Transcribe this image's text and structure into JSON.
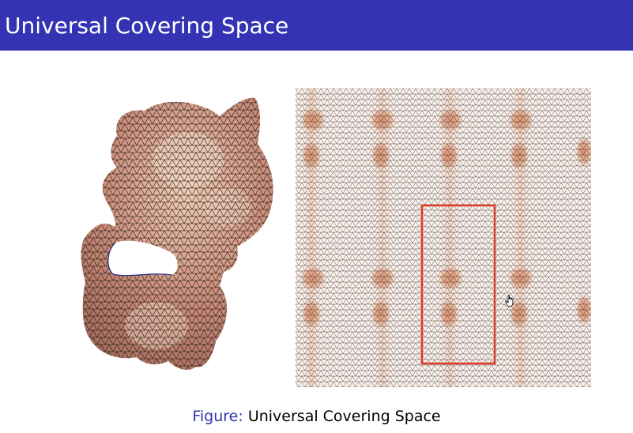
{
  "header": {
    "title": "Universal Covering Space",
    "background_color": "#3333b3"
  },
  "figure": {
    "left_image": "kitten-mesh-surface",
    "right_image": "universal-cover-tiling",
    "highlight_color": "#e03a2a",
    "caption_prefix": "Figure:",
    "caption_text": "Universal Covering Space"
  },
  "cursor": {
    "icon": "hand-cursor-icon"
  }
}
